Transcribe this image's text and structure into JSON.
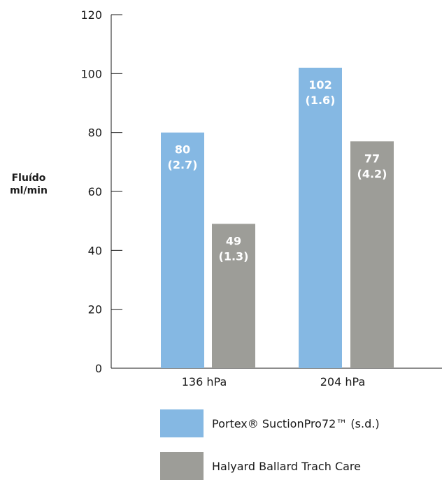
{
  "chart_data": {
    "type": "bar",
    "ylabel_lines": [
      "Fluído",
      "ml/min"
    ],
    "xlabel": "",
    "ylim": [
      0,
      120
    ],
    "yticks": [
      "0",
      "20",
      "40",
      "60",
      "80",
      "100",
      "120"
    ],
    "ytick_values": [
      0,
      20,
      40,
      60,
      80,
      100,
      120
    ],
    "categories": [
      "136 hPa",
      "204 hPa"
    ],
    "series": [
      {
        "name": "Portex® SuctionPro72™ (s.d.)",
        "color": "#85b8e3",
        "values": [
          80,
          102
        ],
        "labels": [
          [
            "80",
            "(2.7)"
          ],
          [
            "102",
            "(1.6)"
          ]
        ]
      },
      {
        "name": "Halyard Ballard Trach Care",
        "color": "#9d9d98",
        "values": [
          49,
          77
        ],
        "labels": [
          [
            "49",
            "(1.3)"
          ],
          [
            "77",
            "(4.2)"
          ]
        ]
      }
    ],
    "grid": false,
    "legend_position": "bottom"
  }
}
